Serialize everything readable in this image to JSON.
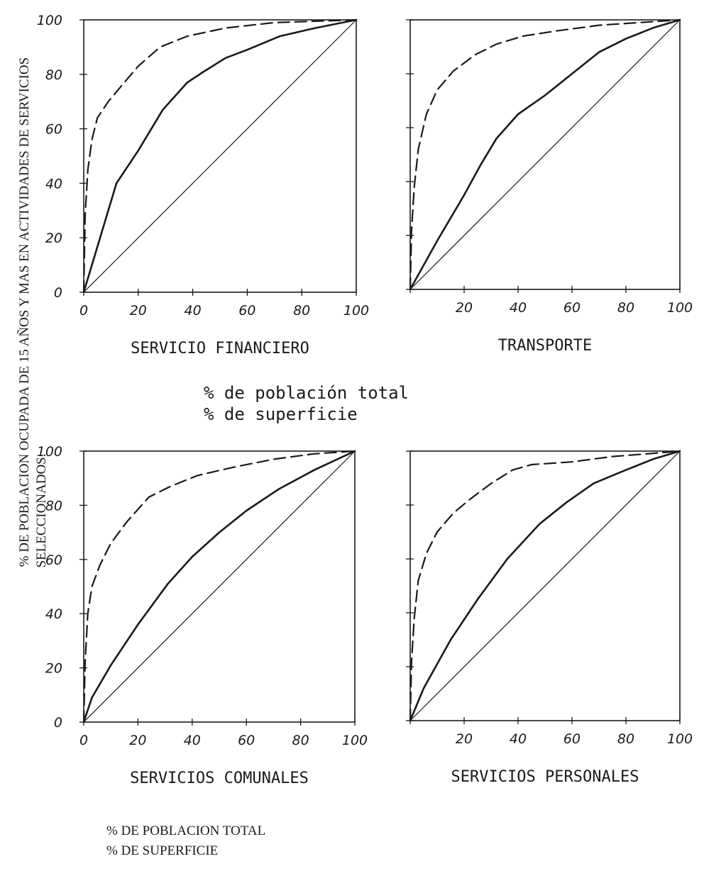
{
  "figure": {
    "ylabel_line1": "% DE POBLACION OCUPADA DE 15 AÑOS Y MAS EN ACTIVIDADES DE SERVICIOS",
    "ylabel_line2": "SELECCIONADOS.",
    "middle_legend": [
      "% de población total",
      "% de superficie"
    ],
    "bottom_legend": [
      "% DE POBLACION TOTAL",
      "% DE SUPERFICIE"
    ]
  },
  "chart_data": [
    {
      "type": "line",
      "title": "SERVICIO FINANCIERO",
      "xlim": [
        0,
        100
      ],
      "ylim": [
        0,
        100
      ],
      "x_ticks": [
        "0",
        "20",
        "40",
        "60",
        "80",
        "100"
      ],
      "y_ticks": [
        "0",
        "20",
        "40",
        "60",
        "80",
        "100"
      ],
      "grid": false,
      "series": [
        {
          "style": "solid",
          "points": [
            [
              0,
              0
            ],
            [
              12,
              40
            ],
            [
              20,
              52
            ],
            [
              29,
              67
            ],
            [
              38,
              77
            ],
            [
              44,
              81
            ],
            [
              52,
              86
            ],
            [
              60,
              89
            ],
            [
              72,
              94
            ],
            [
              85,
              97
            ],
            [
              100,
              100
            ]
          ]
        },
        {
          "style": "dashed",
          "points": [
            [
              0,
              0
            ],
            [
              0.5,
              28
            ],
            [
              1.5,
              45
            ],
            [
              3,
              56
            ],
            [
              5,
              64
            ],
            [
              9,
              70
            ],
            [
              14,
              76
            ],
            [
              20,
              83
            ],
            [
              28,
              90
            ],
            [
              38,
              94
            ],
            [
              52,
              97
            ],
            [
              70,
              99
            ],
            [
              100,
              100
            ]
          ]
        },
        {
          "style": "thin",
          "points": [
            [
              0,
              0
            ],
            [
              100,
              100
            ]
          ]
        }
      ]
    },
    {
      "type": "line",
      "title": "TRANSPORTE",
      "xlim": [
        0,
        100
      ],
      "ylim": [
        0,
        100
      ],
      "x_ticks": [
        "20",
        "40",
        "60",
        "80",
        "100"
      ],
      "y_ticks": [],
      "grid": false,
      "series": [
        {
          "style": "solid",
          "points": [
            [
              0,
              0
            ],
            [
              10,
              18
            ],
            [
              20,
              35
            ],
            [
              26,
              46
            ],
            [
              32,
              56
            ],
            [
              40,
              65
            ],
            [
              50,
              72
            ],
            [
              60,
              80
            ],
            [
              70,
              88
            ],
            [
              80,
              93
            ],
            [
              90,
              97
            ],
            [
              100,
              100
            ]
          ]
        },
        {
          "style": "dashed",
          "points": [
            [
              0,
              0
            ],
            [
              0.5,
              22
            ],
            [
              1.5,
              38
            ],
            [
              3,
              52
            ],
            [
              6,
              65
            ],
            [
              10,
              74
            ],
            [
              16,
              81
            ],
            [
              24,
              87
            ],
            [
              32,
              91
            ],
            [
              42,
              94
            ],
            [
              55,
              96
            ],
            [
              70,
              98
            ],
            [
              85,
              99
            ],
            [
              100,
              100
            ]
          ]
        },
        {
          "style": "thin",
          "points": [
            [
              0,
              0
            ],
            [
              100,
              100
            ]
          ]
        }
      ]
    },
    {
      "type": "line",
      "title": "SERVICIOS COMUNALES",
      "xlim": [
        0,
        100
      ],
      "ylim": [
        0,
        100
      ],
      "x_ticks": [
        "0",
        "20",
        "40",
        "60",
        "80",
        "100"
      ],
      "y_ticks": [
        "0",
        "20",
        "40",
        "60",
        "80",
        "100"
      ],
      "grid": false,
      "series": [
        {
          "style": "solid",
          "points": [
            [
              0,
              0
            ],
            [
              3,
              9
            ],
            [
              10,
              21
            ],
            [
              20,
              36
            ],
            [
              31,
              51
            ],
            [
              40,
              61
            ],
            [
              50,
              70
            ],
            [
              60,
              78
            ],
            [
              72,
              86
            ],
            [
              85,
              93
            ],
            [
              100,
              100
            ]
          ]
        },
        {
          "style": "dashed",
          "points": [
            [
              0,
              0
            ],
            [
              0.5,
              22
            ],
            [
              1.5,
              40
            ],
            [
              3,
              50
            ],
            [
              6,
              58
            ],
            [
              10,
              66
            ],
            [
              16,
              74
            ],
            [
              24,
              83
            ],
            [
              32,
              87
            ],
            [
              42,
              91
            ],
            [
              55,
              94
            ],
            [
              70,
              97
            ],
            [
              85,
              99
            ],
            [
              100,
              100
            ]
          ]
        },
        {
          "style": "thin",
          "points": [
            [
              0,
              0
            ],
            [
              100,
              100
            ]
          ]
        }
      ]
    },
    {
      "type": "line",
      "title": "SERVICIOS PERSONALES",
      "xlim": [
        0,
        100
      ],
      "ylim": [
        0,
        100
      ],
      "x_ticks": [
        "20",
        "40",
        "60",
        "80",
        "100"
      ],
      "y_ticks": [],
      "grid": false,
      "series": [
        {
          "style": "solid",
          "points": [
            [
              0,
              0
            ],
            [
              5,
              12
            ],
            [
              15,
              30
            ],
            [
              25,
              45
            ],
            [
              36,
              60
            ],
            [
              48,
              73
            ],
            [
              58,
              81
            ],
            [
              68,
              88
            ],
            [
              80,
              93
            ],
            [
              90,
              97
            ],
            [
              100,
              100
            ]
          ]
        },
        {
          "style": "dashed",
          "points": [
            [
              0,
              0
            ],
            [
              0.5,
              22
            ],
            [
              1.5,
              38
            ],
            [
              3,
              52
            ],
            [
              6,
              62
            ],
            [
              10,
              70
            ],
            [
              16,
              77
            ],
            [
              22,
              82
            ],
            [
              30,
              88
            ],
            [
              38,
              93
            ],
            [
              45,
              95
            ],
            [
              60,
              96
            ],
            [
              75,
              98
            ],
            [
              88,
              99
            ],
            [
              100,
              100
            ]
          ]
        },
        {
          "style": "thin",
          "points": [
            [
              0,
              0
            ],
            [
              100,
              100
            ]
          ]
        }
      ]
    }
  ]
}
